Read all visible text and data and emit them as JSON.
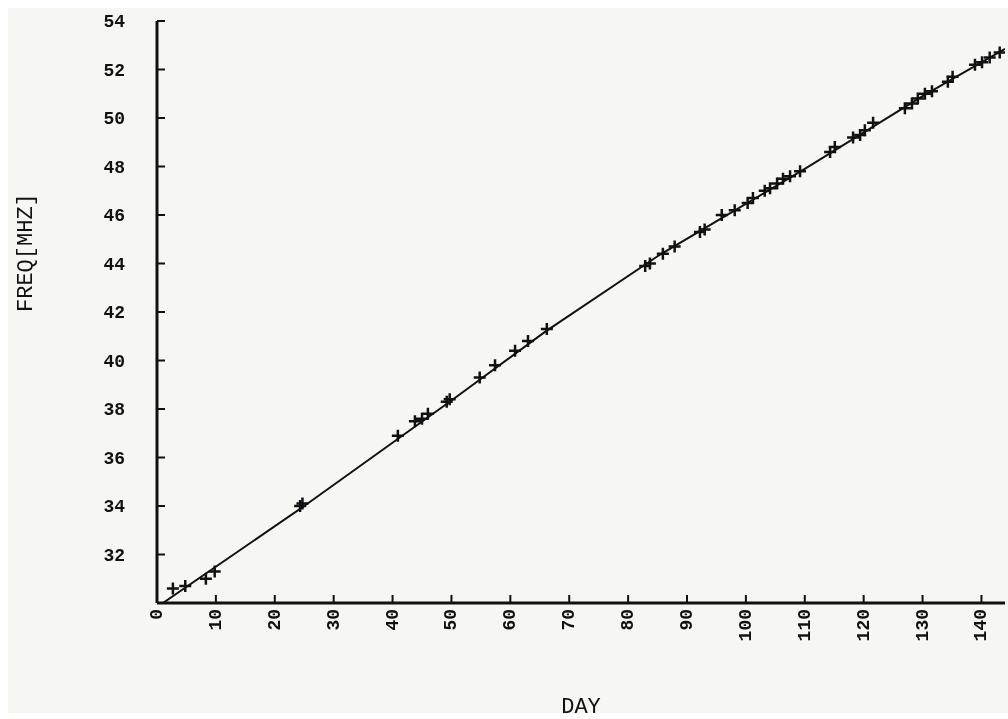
{
  "chart_data": {
    "type": "scatter",
    "xlabel": "DAY",
    "ylabel": "FREQ[MHZ]",
    "xlim": [
      0,
      144
    ],
    "ylim": [
      30,
      54
    ],
    "xticks": [
      0,
      10,
      20,
      30,
      40,
      50,
      60,
      70,
      80,
      90,
      100,
      110,
      120,
      130,
      140
    ],
    "yticks": [
      {
        "value": 30,
        "label": null
      },
      32,
      34,
      36,
      38,
      40,
      42,
      44,
      46,
      48,
      50,
      52,
      54
    ],
    "grid": false,
    "legend": false,
    "series": [
      {
        "marker": "cross",
        "color": "#111111",
        "x": [
          2.7,
          4.8,
          8.3,
          9.8,
          24.3,
          24.7,
          40.9,
          43.8,
          45,
          46,
          49.2,
          49.7,
          54.8,
          57.4,
          60.8,
          63,
          66.2,
          82.9,
          83.7,
          85.9,
          87.9,
          92.2,
          93,
          95.9,
          98.1,
          100.3,
          101.2,
          103.2,
          104.1,
          105.3,
          106.3,
          107.5,
          109.2,
          114.3,
          115.1,
          118.2,
          119.4,
          120.2,
          121.6,
          127,
          128.2,
          129.2,
          130.4,
          131.6,
          134.3,
          135.1,
          138.9,
          140.1,
          141.4,
          143.1
        ],
        "values": [
          30.6,
          30.7,
          31.0,
          31.3,
          34.0,
          34.1,
          36.9,
          37.5,
          37.6,
          37.8,
          38.3,
          38.4,
          39.3,
          39.8,
          40.4,
          40.8,
          41.3,
          43.9,
          44.0,
          44.4,
          44.7,
          45.3,
          45.4,
          46.0,
          46.2,
          46.5,
          46.7,
          47.0,
          47.1,
          47.3,
          47.5,
          47.6,
          47.8,
          48.6,
          48.8,
          49.2,
          49.3,
          49.5,
          49.8,
          50.4,
          50.6,
          50.8,
          51.0,
          51.1,
          51.5,
          51.7,
          52.2,
          52.3,
          52.5,
          52.7
        ]
      },
      {
        "type": "line",
        "marker": "none",
        "color": "#111111",
        "x": [
          1,
          25,
          50,
          66,
          85,
          110,
          130,
          144
        ],
        "values": [
          30.0,
          34.0,
          38.35,
          41.2,
          44.3,
          47.9,
          50.9,
          52.85
        ]
      }
    ]
  }
}
